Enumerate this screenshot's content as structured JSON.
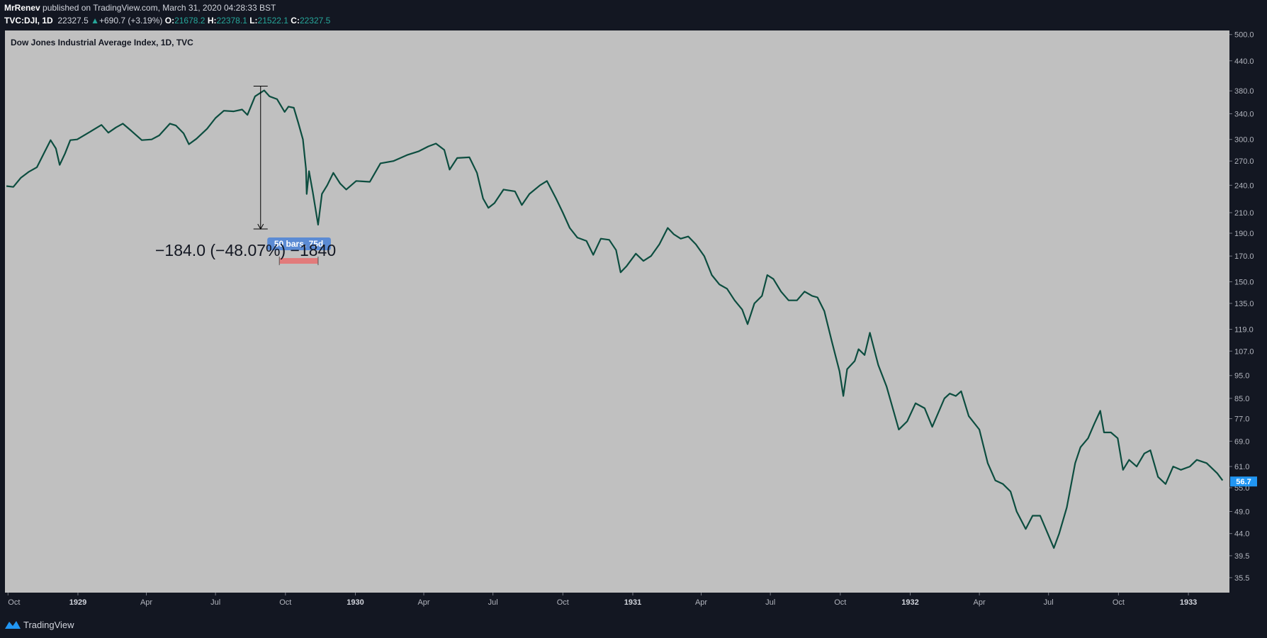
{
  "header": {
    "author": "MrRenev",
    "published_text": " published on TradingView.com, March 31, 2020 04:28:33 BST",
    "symbol": "TVC:DJI, 1D",
    "price": "22327.5",
    "change_arrow": "▲",
    "change": "+690.7 (+3.19%)",
    "open_label": "O:",
    "open": "21678.2",
    "high_label": "H:",
    "high": "22378.1",
    "low_label": "L:",
    "low": "21522.1",
    "close_label": "C:",
    "close": "22327.5"
  },
  "footer": {
    "brand": "TradingView"
  },
  "colors": {
    "background": "#131722",
    "plot_background": "#c0c0c0",
    "line": "#0c4d3f",
    "teal": "#26a69a",
    "price_badge": "#2196f3",
    "range_box": "#5b8bd4",
    "range_bar": "#e57373"
  },
  "chart_data": {
    "type": "line",
    "title": "Dow Jones Industrial Average Index, 1D, TVC",
    "y_scale": "log",
    "ylim": [
      33,
      510
    ],
    "grid": false,
    "legend": "none",
    "y_ticks": [
      "35.5",
      "39.5",
      "44.0",
      "49.0",
      "55.0",
      "61.0",
      "69.0",
      "77.0",
      "85.0",
      "95.0",
      "107.0",
      "119.0",
      "135.0",
      "150.0",
      "170.0",
      "190.0",
      "210.0",
      "240.0",
      "270.0",
      "300.0",
      "340.0",
      "380.0",
      "440.0",
      "500.0"
    ],
    "x_ticks": [
      {
        "label": "Oct",
        "date": "1928-10-01"
      },
      {
        "label": "1929",
        "date": "1929-01-01"
      },
      {
        "label": "Apr",
        "date": "1929-04-01"
      },
      {
        "label": "Jul",
        "date": "1929-07-01"
      },
      {
        "label": "Oct",
        "date": "1929-10-01"
      },
      {
        "label": "1930",
        "date": "1930-01-01"
      },
      {
        "label": "Apr",
        "date": "1930-04-01"
      },
      {
        "label": "Jul",
        "date": "1930-07-01"
      },
      {
        "label": "Oct",
        "date": "1930-10-01"
      },
      {
        "label": "1931",
        "date": "1931-01-01"
      },
      {
        "label": "Apr",
        "date": "1931-04-01"
      },
      {
        "label": "Jul",
        "date": "1931-07-01"
      },
      {
        "label": "Oct",
        "date": "1931-10-01"
      },
      {
        "label": "1932",
        "date": "1932-01-01"
      },
      {
        "label": "Apr",
        "date": "1932-04-01"
      },
      {
        "label": "Jul",
        "date": "1932-07-01"
      },
      {
        "label": "Oct",
        "date": "1932-10-01"
      },
      {
        "label": "1933",
        "date": "1933-01-01"
      }
    ],
    "series": [
      {
        "points": [
          [
            "1928-09-29",
            239
          ],
          [
            "1928-10-08",
            238
          ],
          [
            "1928-10-18",
            249
          ],
          [
            "1928-10-28",
            256
          ],
          [
            "1928-11-08",
            262
          ],
          [
            "1928-11-18",
            282
          ],
          [
            "1928-11-26",
            299
          ],
          [
            "1928-12-03",
            287
          ],
          [
            "1928-12-08",
            265
          ],
          [
            "1928-12-15",
            280
          ],
          [
            "1928-12-22",
            299
          ],
          [
            "1928-12-31",
            300
          ],
          [
            "1929-01-12",
            308
          ],
          [
            "1929-01-25",
            317
          ],
          [
            "1929-02-01",
            322
          ],
          [
            "1929-02-10",
            310
          ],
          [
            "1929-02-20",
            318
          ],
          [
            "1929-03-01",
            324
          ],
          [
            "1929-03-12",
            313
          ],
          [
            "1929-03-26",
            299
          ],
          [
            "1929-04-08",
            300
          ],
          [
            "1929-04-18",
            306
          ],
          [
            "1929-05-02",
            324
          ],
          [
            "1929-05-10",
            321
          ],
          [
            "1929-05-20",
            309
          ],
          [
            "1929-05-27",
            293
          ],
          [
            "1929-06-06",
            301
          ],
          [
            "1929-06-20",
            316
          ],
          [
            "1929-07-01",
            333
          ],
          [
            "1929-07-12",
            345
          ],
          [
            "1929-07-25",
            344
          ],
          [
            "1929-08-05",
            347
          ],
          [
            "1929-08-12",
            338
          ],
          [
            "1929-08-22",
            370
          ],
          [
            "1929-09-03",
            381
          ],
          [
            "1929-09-10",
            370
          ],
          [
            "1929-09-20",
            365
          ],
          [
            "1929-09-30",
            343
          ],
          [
            "1929-10-05",
            352
          ],
          [
            "1929-10-12",
            350
          ],
          [
            "1929-10-18",
            325
          ],
          [
            "1929-10-24",
            300
          ],
          [
            "1929-10-28",
            260
          ],
          [
            "1929-10-29",
            230
          ],
          [
            "1929-11-01",
            257
          ],
          [
            "1929-11-06",
            232
          ],
          [
            "1929-11-13",
            198
          ],
          [
            "1929-11-18",
            230
          ],
          [
            "1929-11-25",
            240
          ],
          [
            "1929-12-03",
            255
          ],
          [
            "1929-12-12",
            242
          ],
          [
            "1929-12-20",
            235
          ],
          [
            "1930-01-02",
            245
          ],
          [
            "1930-01-20",
            244
          ],
          [
            "1930-02-03",
            267
          ],
          [
            "1930-02-20",
            270
          ],
          [
            "1930-03-10",
            278
          ],
          [
            "1930-03-25",
            283
          ],
          [
            "1930-04-07",
            290
          ],
          [
            "1930-04-17",
            294
          ],
          [
            "1930-04-28",
            285
          ],
          [
            "1930-05-05",
            259
          ],
          [
            "1930-05-15",
            274
          ],
          [
            "1930-05-31",
            275
          ],
          [
            "1930-06-10",
            255
          ],
          [
            "1930-06-18",
            225
          ],
          [
            "1930-06-25",
            215
          ],
          [
            "1930-07-03",
            220
          ],
          [
            "1930-07-15",
            235
          ],
          [
            "1930-07-30",
            233
          ],
          [
            "1930-08-08",
            218
          ],
          [
            "1930-08-18",
            230
          ],
          [
            "1930-09-01",
            240
          ],
          [
            "1930-09-10",
            245
          ],
          [
            "1930-09-22",
            225
          ],
          [
            "1930-10-01",
            210
          ],
          [
            "1930-10-10",
            195
          ],
          [
            "1930-10-20",
            186
          ],
          [
            "1930-11-01",
            183
          ],
          [
            "1930-11-10",
            171
          ],
          [
            "1930-11-20",
            185
          ],
          [
            "1930-12-01",
            184
          ],
          [
            "1930-12-10",
            175
          ],
          [
            "1930-12-16",
            157
          ],
          [
            "1930-12-24",
            162
          ],
          [
            "1931-01-05",
            172
          ],
          [
            "1931-01-15",
            166
          ],
          [
            "1931-01-25",
            170
          ],
          [
            "1931-02-05",
            180
          ],
          [
            "1931-02-16",
            195
          ],
          [
            "1931-02-24",
            189
          ],
          [
            "1931-03-05",
            185
          ],
          [
            "1931-03-15",
            187
          ],
          [
            "1931-03-25",
            180
          ],
          [
            "1931-04-05",
            170
          ],
          [
            "1931-04-15",
            155
          ],
          [
            "1931-04-25",
            148
          ],
          [
            "1931-05-05",
            145
          ],
          [
            "1931-05-15",
            137
          ],
          [
            "1931-05-25",
            131
          ],
          [
            "1931-06-01",
            122
          ],
          [
            "1931-06-10",
            135
          ],
          [
            "1931-06-20",
            140
          ],
          [
            "1931-06-27",
            155
          ],
          [
            "1931-07-05",
            152
          ],
          [
            "1931-07-15",
            143
          ],
          [
            "1931-07-25",
            137
          ],
          [
            "1931-08-05",
            137
          ],
          [
            "1931-08-15",
            143
          ],
          [
            "1931-08-25",
            140
          ],
          [
            "1931-09-01",
            139
          ],
          [
            "1931-09-10",
            130
          ],
          [
            "1931-09-20",
            112
          ],
          [
            "1931-09-30",
            97
          ],
          [
            "1931-10-05",
            86
          ],
          [
            "1931-10-10",
            98
          ],
          [
            "1931-10-20",
            102
          ],
          [
            "1931-10-25",
            108
          ],
          [
            "1931-11-02",
            105
          ],
          [
            "1931-11-09",
            117
          ],
          [
            "1931-11-20",
            100
          ],
          [
            "1931-12-01",
            90
          ],
          [
            "1931-12-10",
            80
          ],
          [
            "1931-12-17",
            73
          ],
          [
            "1931-12-28",
            76
          ],
          [
            "1932-01-08",
            83
          ],
          [
            "1932-01-20",
            81
          ],
          [
            "1932-01-30",
            74
          ],
          [
            "1932-02-08",
            80
          ],
          [
            "1932-02-15",
            85
          ],
          [
            "1932-02-22",
            87
          ],
          [
            "1932-03-01",
            86
          ],
          [
            "1932-03-08",
            88
          ],
          [
            "1932-03-18",
            78
          ],
          [
            "1932-04-01",
            73
          ],
          [
            "1932-04-12",
            62
          ],
          [
            "1932-04-22",
            57
          ],
          [
            "1932-05-02",
            56
          ],
          [
            "1932-05-12",
            54
          ],
          [
            "1932-05-20",
            49
          ],
          [
            "1932-06-01",
            45
          ],
          [
            "1932-06-10",
            48
          ],
          [
            "1932-06-20",
            48
          ],
          [
            "1932-06-30",
            44
          ],
          [
            "1932-07-08",
            41
          ],
          [
            "1932-07-15",
            44
          ],
          [
            "1932-07-25",
            50
          ],
          [
            "1932-08-05",
            62
          ],
          [
            "1932-08-12",
            67
          ],
          [
            "1932-08-22",
            70
          ],
          [
            "1932-08-30",
            75
          ],
          [
            "1932-09-07",
            80
          ],
          [
            "1932-09-12",
            72
          ],
          [
            "1932-09-21",
            72
          ],
          [
            "1932-09-30",
            70
          ],
          [
            "1932-10-07",
            60
          ],
          [
            "1932-10-15",
            63
          ],
          [
            "1932-10-25",
            61
          ],
          [
            "1932-11-04",
            65
          ],
          [
            "1932-11-12",
            66
          ],
          [
            "1932-11-22",
            58
          ],
          [
            "1932-12-02",
            56
          ],
          [
            "1932-12-12",
            61
          ],
          [
            "1932-12-22",
            60
          ],
          [
            "1933-01-03",
            61
          ],
          [
            "1933-01-12",
            63
          ],
          [
            "1933-01-25",
            62
          ],
          [
            "1933-02-08",
            59
          ],
          [
            "1933-02-15",
            57
          ]
        ]
      }
    ],
    "current_value_label": "56.7",
    "annotations": {
      "measure_text": "−184.0 (−48.07%) −1840",
      "range_label": "50 bars, 75d",
      "measure_from": {
        "date": "1929-09-03",
        "value": 381
      },
      "measure_to": {
        "date": "1929-09-03",
        "value": 198
      },
      "range_start": "1929-09-23",
      "range_end": "1929-11-13"
    }
  }
}
